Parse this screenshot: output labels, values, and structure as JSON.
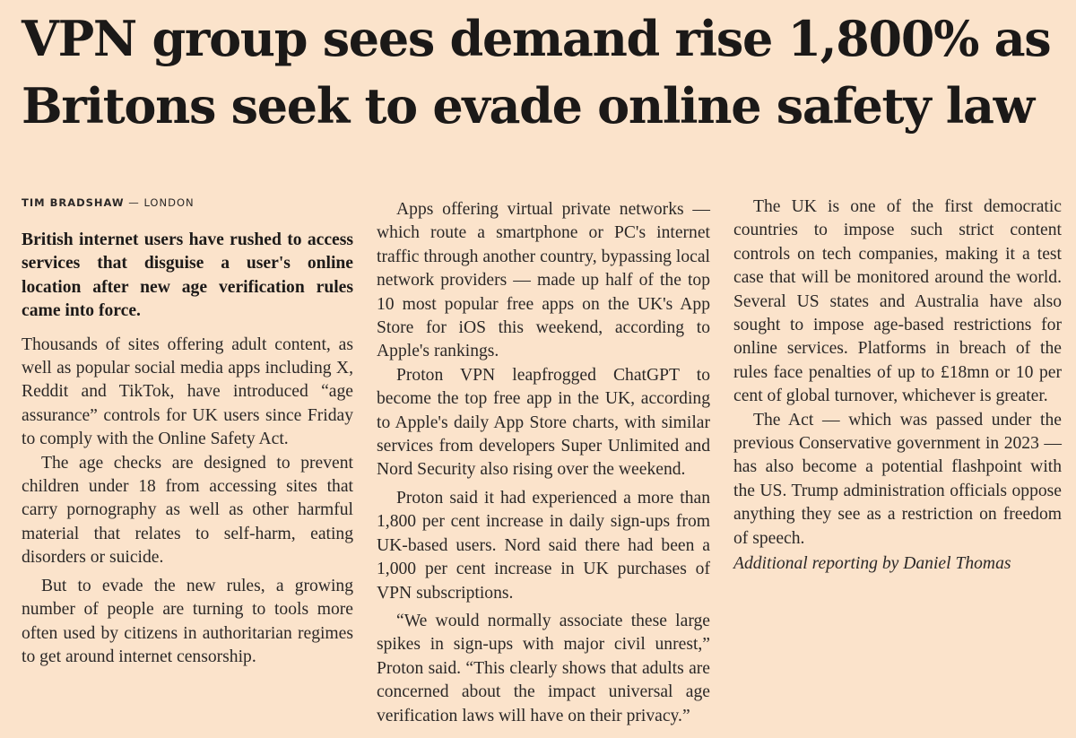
{
  "article": {
    "headline": "VPN group sees demand rise 1,800% as Britons seek to evade online safety law",
    "byline_author": "TIM BRADSHAW",
    "byline_separator": " — ",
    "byline_location": "LONDON",
    "standfirst": "British internet users have rushed to access services that disguise a user's online location after new age verification rules came into force.",
    "paragraphs": [
      "Thousands of sites offering adult content, as well as popular social media apps including X, Reddit and TikTok, have introduced “age assurance” controls for UK users since Friday to comply with the Online Safety Act.",
      "The age checks are designed to prevent children under 18 from accessing sites that carry pornography as well as other harmful material that relates to self-harm, eating disorders or suicide.",
      "But to evade the new rules, a growing number of people are turning to tools more often used by citizens in authoritarian regimes to get around internet censorship.",
      "Apps offering virtual private networks — which route a smartphone or PC's internet traffic through another country, bypassing local network providers — made up half of the top 10 most popular free apps on the UK's App Store for iOS this weekend, according to Apple's rankings.",
      "Proton VPN leapfrogged ChatGPT to become the top free app in the UK, according to Apple's daily App Store charts, with similar services from developers Super Unlimited and Nord Security also rising over the weekend.",
      "Proton said it had experienced a more than 1,800 per cent increase in daily sign-ups from UK-based users. Nord said there had been a 1,000 per cent increase in UK purchases of VPN subscriptions.",
      "“We would normally associate these large spikes in sign-ups with major civil unrest,” Proton said. “This clearly shows that adults are concerned about the impact universal age verification laws will have on their privacy.”",
      "The UK is one of the first democratic countries to impose such strict content controls on tech companies, making it a test case that will be monitored around the world. Several US states and Australia have also sought to impose age-based restrictions for online services. Platforms in breach of the rules face penalties of up to £18mn or 10 per cent of global turnover, whichever is greater.",
      "The Act — which was passed under the previous Conservative government in 2023 — has also become a potential flashpoint with the US. Trump administration officials oppose anything they see as a restriction on freedom of speech."
    ],
    "credit": "Additional reporting by Daniel Thomas"
  }
}
